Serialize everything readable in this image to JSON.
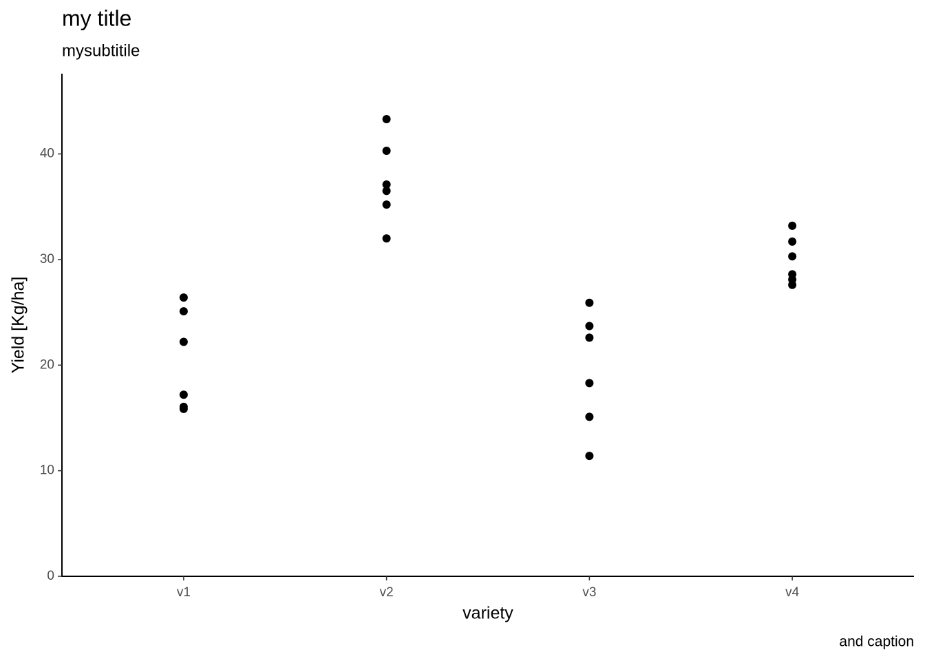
{
  "chart_data": {
    "type": "scatter",
    "title": "my title",
    "subtitle": "mysubtitile",
    "caption": "and caption",
    "x_label": "variety",
    "y_label": "Yield [Kg/ha]",
    "categories": [
      "v1",
      "v2",
      "v3",
      "v4"
    ],
    "values": [
      [
        26.4,
        25.1,
        22.2,
        17.2,
        16.05,
        15.85
      ],
      [
        43.3,
        40.3,
        37.1,
        36.5,
        35.2,
        32.0
      ],
      [
        25.9,
        23.7,
        22.6,
        18.3,
        15.1,
        11.4
      ],
      [
        33.2,
        31.7,
        30.3,
        28.6,
        28.1,
        27.6
      ]
    ],
    "color": "#000000",
    "ylim": [
      0,
      47.6
    ],
    "yticks": [
      0,
      10,
      20,
      30,
      40
    ],
    "grid": false
  }
}
